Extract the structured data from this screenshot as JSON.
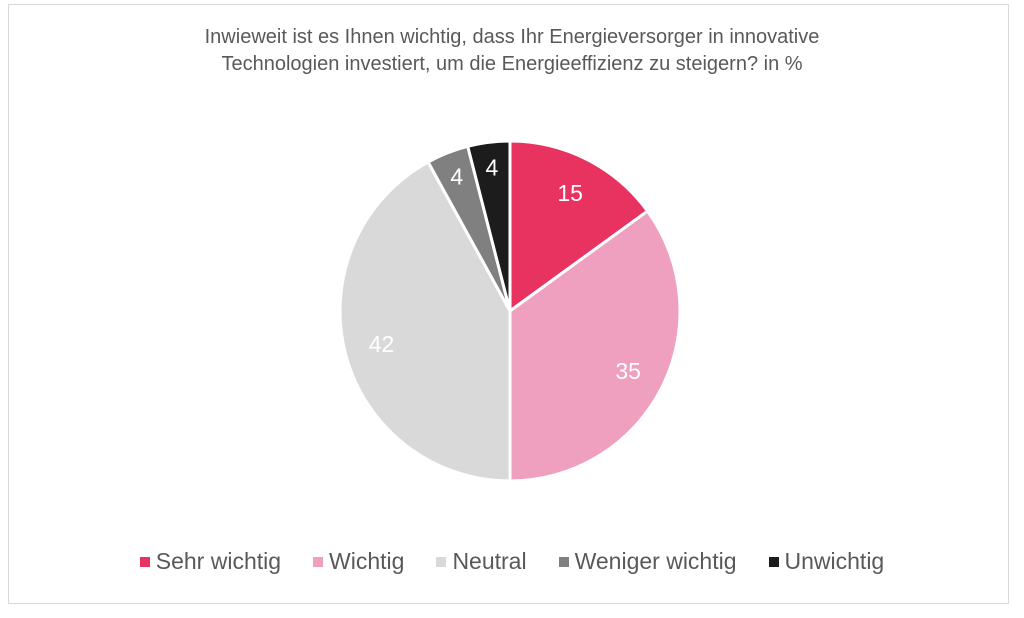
{
  "chart_data": {
    "type": "pie",
    "title_lines": [
      "Inwieweit ist es Ihnen wichtig, dass Ihr Energieversorger in innovative",
      "Technologien investiert, um die Energieeffizienz zu steigern? in %"
    ],
    "categories": [
      "Sehr wichtig",
      "Wichtig",
      "Neutral",
      "Weniger wichtig",
      "Unwichtig"
    ],
    "values": [
      15,
      35,
      42,
      4,
      4
    ],
    "colors": [
      "#E8325F",
      "#F0A0BF",
      "#D9D9D9",
      "#808080",
      "#1C1C1C"
    ],
    "label_colors": [
      "#ffffff",
      "#ffffff",
      "#ffffff",
      "#ffffff",
      "#ffffff"
    ],
    "start": "top",
    "direction": "clockwise",
    "legend_position": "bottom",
    "unit": "%"
  }
}
